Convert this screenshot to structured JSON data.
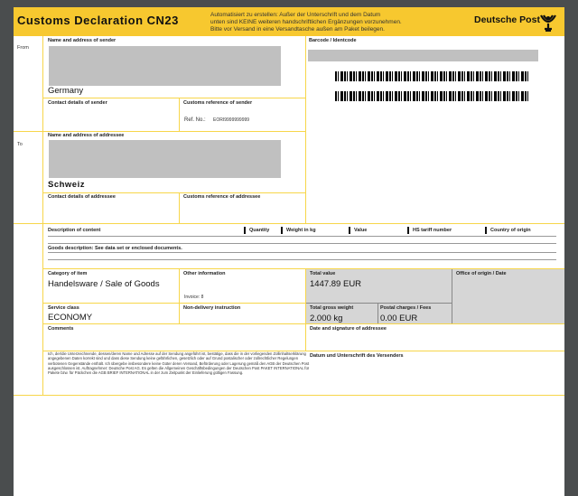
{
  "header": {
    "title": "Customs Declaration CN23",
    "note": [
      "Automatisiert zu erstellen: Außer der Unterschrift und dem Datum",
      "unten sind KEINE weiteren handschriftlichen Ergänzungen vorzunehmen.",
      "Bitte vor Versand in eine Versandtasche außen am Paket beilegen."
    ],
    "brand": "Deutsche Post",
    "brand_color": "#f7c82f"
  },
  "from": {
    "side_label": "From",
    "name_label": "Name and address of sender",
    "country": "Germany",
    "contact_label": "Contact details of sender",
    "customs_ref_label": "Customs reference of sender",
    "ref_prefix": "Ref. No.:",
    "ref_value": "EORI9999999999"
  },
  "barcode": {
    "label": "Barcode / Identcode"
  },
  "to": {
    "side_label": "To",
    "name_label": "Name and address of addressee",
    "country": "Schweiz",
    "contact_label": "Contact details of addressee",
    "customs_ref_label": "Customs reference of addressee"
  },
  "content": {
    "columns": [
      "Description of content",
      "Quantity",
      "Weight in kg",
      "Value",
      "HS tariff number",
      "Country of origin"
    ],
    "goods": "Goods description: See data set or enclosed documents."
  },
  "category": {
    "label": "Category of item",
    "value": "Handelsware / Sale of Goods"
  },
  "other": {
    "label": "Other information",
    "invoice": "Invoice:  8"
  },
  "total_value": {
    "label": "Total value",
    "value": "1447.89 EUR"
  },
  "office": {
    "label": "Office of origin / Date"
  },
  "service": {
    "label": "Service class",
    "value": "ECONOMY"
  },
  "nondelivery": {
    "label": "Non-delivery instruction"
  },
  "gross": {
    "label": "Total gross weight",
    "value": "2.000 kg"
  },
  "postal": {
    "label": "Postal charges / Fees",
    "value": "0.00 EUR"
  },
  "comments": {
    "label": "Comments"
  },
  "addressee_sig": {
    "label": "Date and signature of addressee"
  },
  "legal": "Ich, der/die Unterzeichnende, dessen/deren Name und Adresse auf der Sendung angeführt ist, bestätige, dass die in der vorliegenden Zollinhaltserklärung angegebenen Daten korrekt sind und dass diese Sendung keine gefährlichen, gesetzlich oder auf Grund postalischer oder zollrechtlicher Regelungen verbotenen Gegenstände enthält. Ich übergebe insbesondere keine Güter deren Versand, Beförderung oder Lagerung gemäß den AGB der Deutschen Post ausgeschlossen ist. Auftragnehmer: Deutsche Post AG. Es gelten die Allgemeinen Geschäftsbedingungen der Deutschen Post PAKET INTERNATIONAL für Pakete bzw. für Päckchen die AGB BRIEF INTERNATIONAL in der zum Zeitpunkt der Einlieferung gültigen Fassung.",
  "sender_sig": {
    "label": "Datum und Unterschrift des Versenders"
  }
}
